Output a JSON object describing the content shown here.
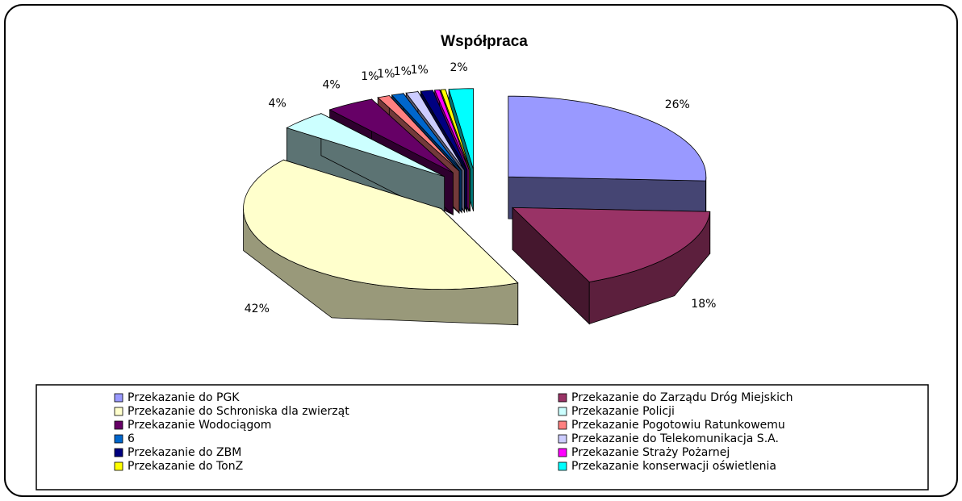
{
  "chart_data": {
    "type": "pie3d",
    "title": "Współpraca",
    "categories": [
      "Przekazanie do PGK",
      "Przekazanie do Zarządu Dróg Miejskich",
      "Przekazanie do Schroniska dla zwierząt",
      "Przekazanie Policji",
      "Przekazanie Wodociągom",
      "Przekazanie Pogotowiu Ratunkowemu",
      "6",
      "Przekazanie do Telekomunikacja S.A.",
      "Przekazanie do ZBM",
      "Przekazanie Straży Pożarnej",
      "Przekazanie do TonZ",
      "Przekazanie konserwacji oświetlenia"
    ],
    "values": [
      26,
      18,
      42,
      4,
      4,
      1,
      1,
      1,
      1,
      0.4,
      0.4,
      2
    ],
    "value_labels": [
      "26%",
      "18%",
      "42%",
      "4%",
      "4%",
      "1%",
      "1%",
      "1%",
      "1%",
      null,
      null,
      "2%"
    ],
    "colors": [
      "#9999ff",
      "#993366",
      "#ffffcc",
      "#ccffff",
      "#660066",
      "#ff8080",
      "#0066cc",
      "#ccccff",
      "#000080",
      "#ff00ff",
      "#ffff00",
      "#00ffff"
    ]
  }
}
